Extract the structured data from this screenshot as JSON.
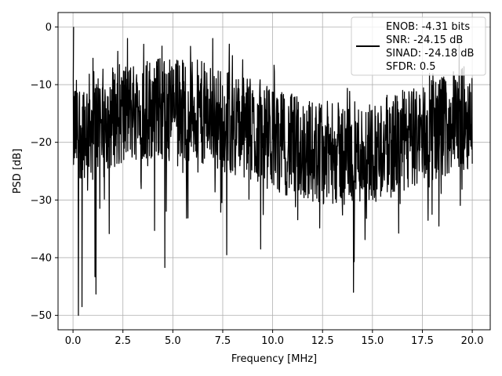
{
  "chart_data": {
    "type": "line",
    "title": "",
    "xlabel": "Frequency [MHz]",
    "ylabel": "PSD [dB]",
    "xlim": [
      -0.75,
      20.9
    ],
    "ylim": [
      -52.5,
      2.5
    ],
    "xticks": [
      0,
      2.5,
      5,
      7.5,
      10,
      12.5,
      15,
      17.5,
      20
    ],
    "xtick_labels": [
      "0.0",
      "2.5",
      "5.0",
      "7.5",
      "10.0",
      "12.5",
      "15.0",
      "17.5",
      "20.0"
    ],
    "yticks": [
      0,
      -10,
      -20,
      -30,
      -40,
      -50
    ],
    "ytick_labels": [
      "0",
      "−10",
      "−20",
      "−30",
      "−40",
      "−50"
    ],
    "grid": true,
    "legend_placement": "upper-right",
    "line_color": "#000000",
    "legend": {
      "lines": [
        "ENOB: -4.31 bits",
        "SNR: -24.15 dB",
        "SINAD: -24.18 dB",
        "SFDR: 0.5"
      ]
    },
    "series": [
      {
        "x_range": [
          0,
          20
        ],
        "noise_floor_db": -24,
        "peak": {
          "x": 0.03,
          "y": 0
        },
        "notable_points": [
          {
            "x": 0.27,
            "y": -50
          },
          {
            "x": 0.45,
            "y": -48.5
          },
          {
            "x": 1.15,
            "y": -46.3
          },
          {
            "x": 1.1,
            "y": -43.3
          },
          {
            "x": 4.6,
            "y": -41.7
          },
          {
            "x": 14.05,
            "y": -46
          },
          {
            "x": 7.0,
            "y": -2
          },
          {
            "x": 7.7,
            "y": -39.5
          },
          {
            "x": 9.4,
            "y": -38.5
          }
        ]
      }
    ]
  }
}
